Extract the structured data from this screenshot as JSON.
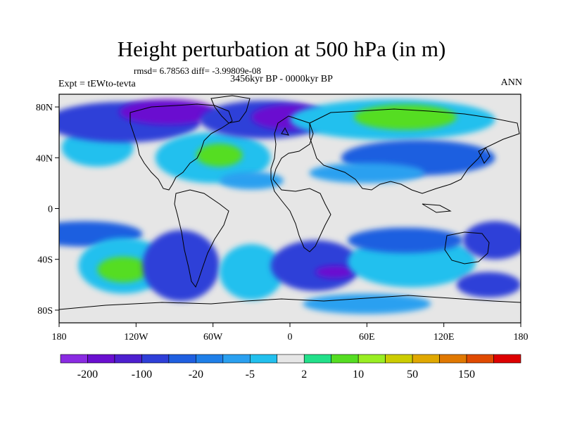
{
  "title": "Height perturbation at 500 hPa (in m)",
  "stats": "rmsd= 6.78563 diff= -3.99809e-08",
  "subtitle": "3456kyr BP - 0000kyr BP",
  "expt": "Expt = tEWto-tevta",
  "season": "ANN",
  "map": {
    "lon_range": [
      -180,
      180
    ],
    "lat_range": [
      -90,
      90
    ],
    "lon_ticks": [
      {
        "value": -180,
        "label": "180"
      },
      {
        "value": -120,
        "label": "120W"
      },
      {
        "value": -60,
        "label": "60W"
      },
      {
        "value": 0,
        "label": "0"
      },
      {
        "value": 60,
        "label": "60E"
      },
      {
        "value": 120,
        "label": "120E"
      },
      {
        "value": 180,
        "label": "180"
      }
    ],
    "lat_ticks": [
      {
        "value": 80,
        "label": "80N"
      },
      {
        "value": 40,
        "label": "40N"
      },
      {
        "value": 0,
        "label": "0"
      },
      {
        "value": -40,
        "label": "40S"
      },
      {
        "value": -80,
        "label": "80S"
      }
    ],
    "background_color": "#e6e6e6",
    "coastline_color": "#000000",
    "anomaly_blobs": [
      {
        "lon": -150,
        "lat": 48,
        "rlon": 28,
        "rlat": 15,
        "cls": 7
      },
      {
        "lon": -130,
        "lat": 68,
        "rlon": 60,
        "rlat": 16,
        "cls": 3
      },
      {
        "lon": -95,
        "lat": 76,
        "rlon": 38,
        "rlat": 10,
        "cls": 1
      },
      {
        "lon": -60,
        "lat": 40,
        "rlon": 45,
        "rlat": 20,
        "cls": 7
      },
      {
        "lon": -55,
        "lat": 42,
        "rlon": 18,
        "rlat": 9,
        "cls": 10
      },
      {
        "lon": -20,
        "lat": 70,
        "rlon": 50,
        "rlat": 15,
        "cls": 3
      },
      {
        "lon": 0,
        "lat": 72,
        "rlon": 30,
        "rlat": 10,
        "cls": 1
      },
      {
        "lon": 80,
        "lat": 70,
        "rlon": 80,
        "rlat": 16,
        "cls": 7
      },
      {
        "lon": 90,
        "lat": 72,
        "rlon": 40,
        "rlat": 10,
        "cls": 10
      },
      {
        "lon": 100,
        "lat": 40,
        "rlon": 60,
        "rlat": 14,
        "cls": 4
      },
      {
        "lon": 60,
        "lat": 28,
        "rlon": 45,
        "rlat": 8,
        "cls": 6
      },
      {
        "lon": -30,
        "lat": 22,
        "rlon": 25,
        "rlat": 7,
        "cls": 6
      },
      {
        "lon": -160,
        "lat": -20,
        "rlon": 45,
        "rlat": 10,
        "cls": 4
      },
      {
        "lon": -130,
        "lat": -45,
        "rlon": 35,
        "rlat": 22,
        "cls": 7
      },
      {
        "lon": -130,
        "lat": -48,
        "rlon": 20,
        "rlat": 10,
        "cls": 10
      },
      {
        "lon": -85,
        "lat": -45,
        "rlon": 30,
        "rlat": 28,
        "cls": 3
      },
      {
        "lon": -30,
        "lat": -50,
        "rlon": 25,
        "rlat": 22,
        "cls": 7
      },
      {
        "lon": 20,
        "lat": -45,
        "rlon": 35,
        "rlat": 20,
        "cls": 3
      },
      {
        "lon": 35,
        "lat": -50,
        "rlon": 15,
        "rlat": 5,
        "cls": 1
      },
      {
        "lon": 95,
        "lat": -42,
        "rlon": 50,
        "rlat": 20,
        "cls": 7
      },
      {
        "lon": 90,
        "lat": -25,
        "rlon": 45,
        "rlat": 10,
        "cls": 4
      },
      {
        "lon": 160,
        "lat": -25,
        "rlon": 25,
        "rlat": 15,
        "cls": 3
      },
      {
        "lon": 155,
        "lat": -60,
        "rlon": 25,
        "rlat": 10,
        "cls": 3
      },
      {
        "lon": 60,
        "lat": -75,
        "rlon": 50,
        "rlat": 8,
        "cls": 6
      }
    ]
  },
  "colorbar": {
    "colors": [
      "#8a2be2",
      "#6a0fd0",
      "#4d1fcf",
      "#2f3fd8",
      "#1f5fe0",
      "#1f7fe8",
      "#2aa0f0",
      "#22c0ee",
      "#e6e6e6",
      "#22e08a",
      "#55dd22",
      "#99ee22",
      "#cccc00",
      "#e0a800",
      "#e07800",
      "#e04a00",
      "#dd0000"
    ],
    "labels": [
      "-200",
      "-100",
      "-20",
      "-5",
      "2",
      "10",
      "50",
      "150"
    ]
  }
}
